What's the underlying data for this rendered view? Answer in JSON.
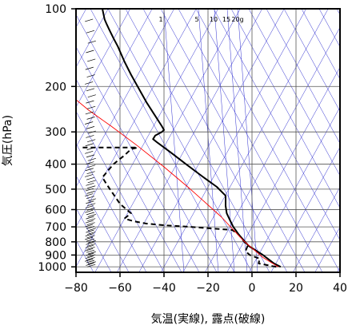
{
  "chart_data": {
    "type": "line",
    "title": "",
    "xlabel": "気温(実線), 露点(破線)",
    "ylabel": "気圧(hPa)",
    "xlim": [
      -80,
      40
    ],
    "ylim": [
      1050,
      100
    ],
    "y_scale": "log",
    "x_ticks": [
      -80,
      -60,
      -40,
      -20,
      0,
      20,
      40
    ],
    "x_tick_labels": [
      "−80",
      "−60",
      "−40",
      "−20",
      "0",
      "20",
      "40"
    ],
    "y_ticks": [
      100,
      200,
      300,
      400,
      500,
      600,
      700,
      800,
      900,
      1000
    ],
    "y_tick_labels": [
      "100",
      "200",
      "300",
      "400",
      "500",
      "600",
      "700",
      "800",
      "900",
      "1000"
    ],
    "grid": true,
    "mixing_ratio_labels": [
      "1",
      "5",
      "10",
      "15",
      "20g"
    ],
    "series": [
      {
        "role": "temperature",
        "style": "solid",
        "color": "#000000",
        "points": [
          [
            13.0,
            1000
          ],
          [
            10.0,
            970
          ],
          [
            5.0,
            900
          ],
          [
            -1.5,
            830
          ],
          [
            -6.0,
            750
          ],
          [
            -7.5,
            720
          ],
          [
            -8.5,
            700
          ],
          [
            -10.0,
            660
          ],
          [
            -11.5,
            620
          ],
          [
            -12.0,
            580
          ],
          [
            -12.0,
            530
          ],
          [
            -16.0,
            490
          ],
          [
            -22.0,
            450
          ],
          [
            -30.0,
            400
          ],
          [
            -37.0,
            360
          ],
          [
            -43.0,
            330
          ],
          [
            -45.0,
            320
          ],
          [
            -44.0,
            310
          ],
          [
            -41.0,
            300
          ],
          [
            -40.0,
            295
          ],
          [
            -41.0,
            285
          ],
          [
            -44.0,
            260
          ],
          [
            -48.0,
            230
          ],
          [
            -52.0,
            200
          ],
          [
            -55.0,
            180
          ],
          [
            -58.0,
            160
          ],
          [
            -61.0,
            140
          ],
          [
            -63.0,
            130
          ],
          [
            -65.0,
            120
          ],
          [
            -66.0,
            115
          ],
          [
            -67.0,
            110
          ],
          [
            -67.5,
            105
          ],
          [
            -68.0,
            100
          ]
        ]
      },
      {
        "role": "dewpoint",
        "style": "dashed",
        "color": "#000000",
        "points": [
          [
            11.0,
            1000
          ],
          [
            3.0,
            970
          ],
          [
            3.5,
            930
          ],
          [
            -1.0,
            900
          ],
          [
            -3.0,
            870
          ],
          [
            -2.0,
            830
          ],
          [
            -4.0,
            790
          ],
          [
            -6.0,
            750
          ],
          [
            -9.0,
            720
          ],
          [
            -28.0,
            700
          ],
          [
            -40.0,
            690
          ],
          [
            -48.0,
            680
          ],
          [
            -54.0,
            665
          ],
          [
            -58.0,
            650
          ],
          [
            -55.0,
            620
          ],
          [
            -57.0,
            600
          ],
          [
            -60.0,
            570
          ],
          [
            -66.0,
            480
          ],
          [
            -68.0,
            450
          ],
          [
            -63.0,
            400
          ],
          [
            -58.0,
            370
          ],
          [
            -55.0,
            350
          ],
          [
            -52.0,
            345
          ],
          [
            -65.0,
            345
          ],
          [
            -78.0,
            345
          ]
        ]
      },
      {
        "role": "parcel",
        "style": "solid",
        "color": "#ff0000",
        "points": [
          [
            12.0,
            1000
          ],
          [
            5.0,
            920
          ],
          [
            -4.0,
            790
          ],
          [
            -14.0,
            640
          ],
          [
            -28.0,
            500
          ],
          [
            -40.0,
            410
          ],
          [
            -52.0,
            340
          ],
          [
            -64.0,
            285
          ],
          [
            -74.0,
            248
          ],
          [
            -80.0,
            225
          ]
        ]
      }
    ],
    "guide_lines": {
      "color": "#3030d0",
      "isotherms_skewed": true,
      "dry_adiabats": true,
      "mixing_ratio_lines": true
    }
  }
}
